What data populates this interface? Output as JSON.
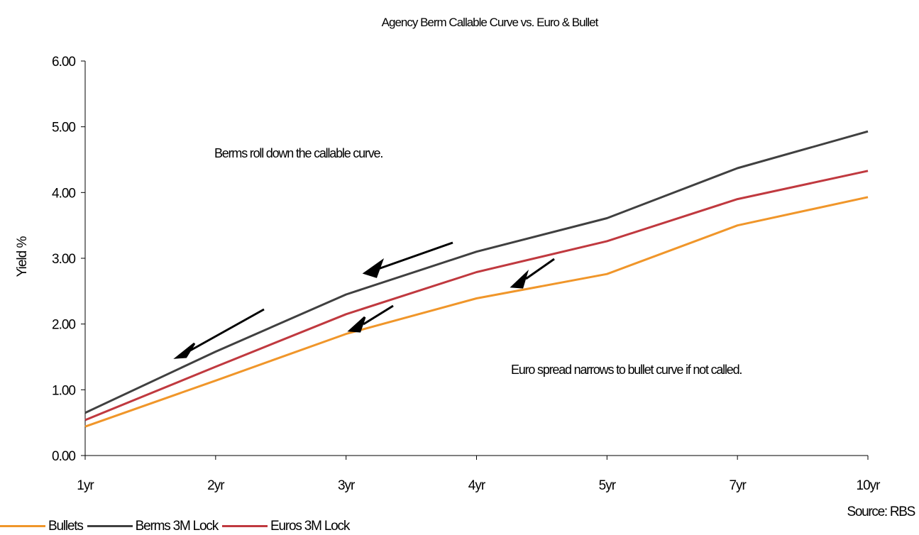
{
  "chart_data": {
    "type": "line",
    "title": "Agency Berm Callable Curve vs. Euro & Bullet",
    "xlabel": "",
    "ylabel": "Yield %",
    "categories": [
      "1yr",
      "2yr",
      "3yr",
      "4yr",
      "5yr",
      "7yr",
      "10yr"
    ],
    "ylim": [
      0,
      6
    ],
    "yticks": [
      "0.00",
      "1.00",
      "2.00",
      "3.00",
      "4.00",
      "5.00",
      "6.00"
    ],
    "grid": false,
    "legend_position": "bottom-left",
    "series": [
      {
        "name": "Bullets",
        "color": "#f0962a",
        "values": [
          0.44,
          1.14,
          1.85,
          2.39,
          2.76,
          3.5,
          3.93
        ]
      },
      {
        "name": "Berms 3M Lock",
        "color": "#404040",
        "values": [
          0.65,
          1.58,
          2.45,
          3.1,
          3.61,
          4.37,
          4.93
        ]
      },
      {
        "name": "Euros 3M Lock",
        "color": "#c0393f",
        "values": [
          0.54,
          1.35,
          2.15,
          2.79,
          3.26,
          3.9,
          4.33
        ]
      }
    ],
    "annotations": [
      "Berms roll down the callable curve.",
      "Euro spread narrows to bullet curve if not called."
    ],
    "source": "Source: RBS"
  }
}
